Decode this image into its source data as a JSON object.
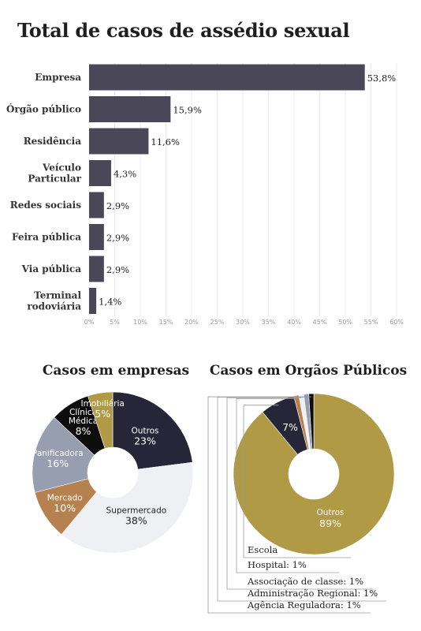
{
  "page": {
    "title": "Total de casos de assédio sexual"
  },
  "chart_data": [
    {
      "type": "bar",
      "orientation": "horizontal",
      "categories": [
        "Empresa",
        "Órgão público",
        "Residência",
        "Veículo Particular",
        "Redes sociais",
        "Feira pública",
        "Via pública",
        "Terminal rodoviária"
      ],
      "values": [
        53.8,
        15.9,
        11.6,
        4.3,
        2.9,
        2.9,
        2.9,
        1.4
      ],
      "value_labels": [
        "53,8%",
        "15,9%",
        "11,6%",
        "4,3%",
        "2,9%",
        "2,9%",
        "2,9%",
        "1,4%"
      ],
      "xlim": [
        0,
        60
      ],
      "x_ticks": [
        0,
        5,
        10,
        15,
        20,
        25,
        30,
        35,
        40,
        45,
        50,
        55,
        60
      ],
      "x_tick_labels": [
        "0%",
        "5%",
        "10%",
        "15%",
        "20%",
        "25%",
        "30%",
        "35%",
        "40%",
        "45%",
        "50%",
        "55%",
        "60%"
      ],
      "grid": true,
      "bar_color": "#4a4858"
    },
    {
      "type": "pie",
      "title": "Casos em empresas",
      "labels": [
        "Outros",
        "Supermercado",
        "Mercado",
        "Panificadora",
        "Clínica Médica",
        "Imobiliária"
      ],
      "values": [
        23,
        38,
        10,
        16,
        8,
        5
      ],
      "value_labels": [
        "23%",
        "38%",
        "10%",
        "16%",
        "8%",
        "5%"
      ],
      "colors": [
        "#272638",
        "#eef0f3",
        "#b5824f",
        "#979eb0",
        "#0d0d0d",
        "#b19a45"
      ],
      "donut": true
    },
    {
      "type": "pie",
      "title": "Casos em Orgãos Públicos",
      "labels": [
        "Outros",
        "Escola",
        "Hospital",
        "Associação de classe",
        "Administração Regional",
        "Agência Reguladora"
      ],
      "values": [
        89,
        7,
        1,
        1,
        1,
        1
      ],
      "value_labels": [
        "89%",
        "7%",
        "1%",
        "1%",
        "1%",
        "1%"
      ],
      "callouts": [
        "Escola",
        "Hospital: 1%",
        "Associação de classe: 1%",
        "Administração Regional: 1%",
        "Agência Reguladora: 1%"
      ],
      "colors": [
        "#b19a45",
        "#272638",
        "#b5824f",
        "#eef0f3",
        "#979eb0",
        "#0d0d0d"
      ],
      "donut": true
    }
  ]
}
